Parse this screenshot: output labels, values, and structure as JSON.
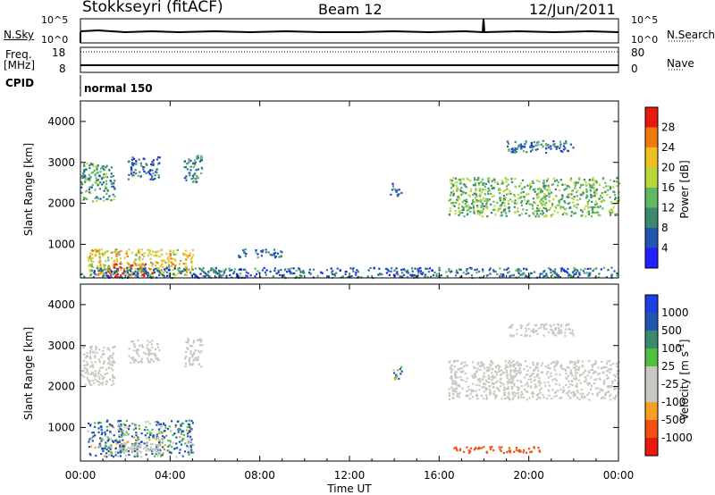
{
  "header": {
    "station": "Stokkseyri (fitACF)",
    "beam": "Beam 12",
    "date": "12/Jun/2011"
  },
  "top_panels": {
    "nsky_label": "N.Sky",
    "nsky_ticks": [
      "10^5",
      "10^0"
    ],
    "nsearch_label": "N.Search",
    "freq_label": "Freq.",
    "freq_unit": "[MHz]",
    "freq_ticks": [
      "18",
      "8"
    ],
    "nave_label": "Nave",
    "nave_ticks": [
      "80",
      "0"
    ],
    "cpid_label": "CPID",
    "cpid_value": "normal 150"
  },
  "x_axis": {
    "label": "Time UT",
    "ticks": [
      "00:00",
      "04:00",
      "08:00",
      "12:00",
      "16:00",
      "20:00",
      "00:00"
    ],
    "range_hours": [
      0,
      24
    ]
  },
  "y_axis": {
    "label": "Slant Range [km]",
    "ticks": [
      "1000",
      "2000",
      "3000",
      "4000"
    ],
    "range_km": [
      180,
      4500
    ]
  },
  "colors": {
    "power": [
      "#1f1fff",
      "#2255b0",
      "#3a8a6c",
      "#5fb95f",
      "#b8d83a",
      "#f0c020",
      "#f07a10",
      "#e81a10"
    ],
    "velocity": [
      "#e81a10",
      "#f05010",
      "#f5a020",
      "#c8c8c0",
      "#c8c8c0",
      "#4ec040",
      "#3a8a6c",
      "#2255b0",
      "#1f3fe0"
    ]
  },
  "chart_data": [
    {
      "type": "heatmap",
      "title": "Power",
      "colorbar_label": "Power [dB]",
      "colorbar_ticks": [
        "4",
        "8",
        "12",
        "16",
        "20",
        "24",
        "28"
      ],
      "x_range_hours": [
        0,
        24
      ],
      "y_range_km": [
        180,
        4500
      ],
      "echo_regions": [
        {
          "t": [
            0.0,
            1.5
          ],
          "r": [
            2050,
            3000
          ],
          "level_db": 12
        },
        {
          "t": [
            2.1,
            3.5
          ],
          "r": [
            2600,
            3150
          ],
          "level_db": 8
        },
        {
          "t": [
            4.6,
            5.4
          ],
          "r": [
            2500,
            3200
          ],
          "level_db": 10
        },
        {
          "t": [
            0.3,
            5.0
          ],
          "r": [
            250,
            900
          ],
          "level_db": 20
        },
        {
          "t": [
            1.2,
            3.2
          ],
          "r": [
            220,
            550
          ],
          "level_db": 28
        },
        {
          "t": [
            7.0,
            9.0
          ],
          "r": [
            700,
            900
          ],
          "level_db": 8
        },
        {
          "t": [
            13.8,
            14.3
          ],
          "r": [
            2200,
            2500
          ],
          "level_db": 8
        },
        {
          "t": [
            16.4,
            24.0
          ],
          "r": [
            1700,
            2650
          ],
          "level_db": 14
        },
        {
          "t": [
            19.0,
            22.0
          ],
          "r": [
            3250,
            3550
          ],
          "level_db": 8
        },
        {
          "t": [
            0.0,
            24.0
          ],
          "r": [
            200,
            450
          ],
          "level_db": 8
        }
      ]
    },
    {
      "type": "heatmap",
      "title": "Velocity",
      "colorbar_label": "Velocity [m s^-1]",
      "colorbar_ticks": [
        "1000",
        "500",
        "100",
        "25",
        "-25",
        "-100",
        "-500",
        "-1000"
      ],
      "x_range_hours": [
        0,
        24
      ],
      "y_range_km": [
        180,
        4500
      ],
      "echo_regions": [
        {
          "t": [
            0.0,
            1.5
          ],
          "r": [
            2050,
            3000
          ],
          "velocity": 0
        },
        {
          "t": [
            2.1,
            3.5
          ],
          "r": [
            2600,
            3150
          ],
          "velocity": 0
        },
        {
          "t": [
            4.6,
            5.4
          ],
          "r": [
            2500,
            3200
          ],
          "velocity": 0
        },
        {
          "t": [
            0.3,
            5.0
          ],
          "r": [
            300,
            1200
          ],
          "velocity": 100
        },
        {
          "t": [
            1.5,
            3.5
          ],
          "r": [
            400,
            650
          ],
          "velocity": 0
        },
        {
          "t": [
            16.4,
            24.0
          ],
          "r": [
            1700,
            2650
          ],
          "velocity": 0
        },
        {
          "t": [
            19.0,
            22.0
          ],
          "r": [
            3250,
            3550
          ],
          "velocity": 0
        },
        {
          "t": [
            16.5,
            20.5
          ],
          "r": [
            400,
            550
          ],
          "velocity": -300
        },
        {
          "t": [
            13.8,
            14.3
          ],
          "r": [
            2200,
            2500
          ],
          "velocity": 100
        }
      ]
    }
  ]
}
